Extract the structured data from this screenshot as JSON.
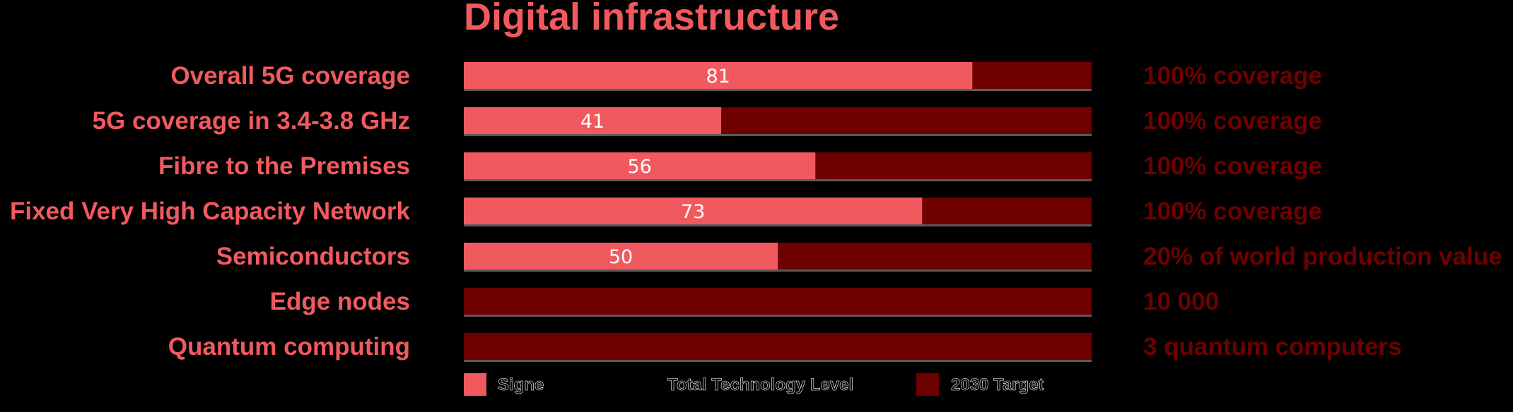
{
  "chart_data": {
    "type": "bar",
    "title": "Digital infrastructure",
    "categories": [
      "Overall 5G coverage",
      "5G coverage in 3.4-3.8 GHz",
      "Fibre to the Premises",
      "Fixed Very High Capacity Network",
      "Semiconductors",
      "Edge nodes",
      "Quantum computing"
    ],
    "values": [
      81,
      41,
      56,
      73,
      50,
      null,
      null
    ],
    "value_labels": [
      "81",
      "41",
      "56",
      "73",
      "50",
      "",
      ""
    ],
    "targets": [
      "100% coverage",
      "100% coverage",
      "100% coverage",
      "100% coverage",
      "20% of world production value",
      "10 000",
      "3 quantum computers"
    ],
    "xlim": [
      0,
      100
    ],
    "legend": {
      "position": "bottom",
      "items": [
        {
          "name": "Signe",
          "color": "#f05a5f"
        },
        {
          "name": "Total Technology Level",
          "color": "#000000"
        },
        {
          "name": "2030 Target",
          "color": "#6e0000"
        }
      ]
    },
    "colors": {
      "progress": "#f05a5f",
      "target": "#6e0000",
      "background": "#000000",
      "bar_shadow": "#5a5a5a"
    }
  }
}
